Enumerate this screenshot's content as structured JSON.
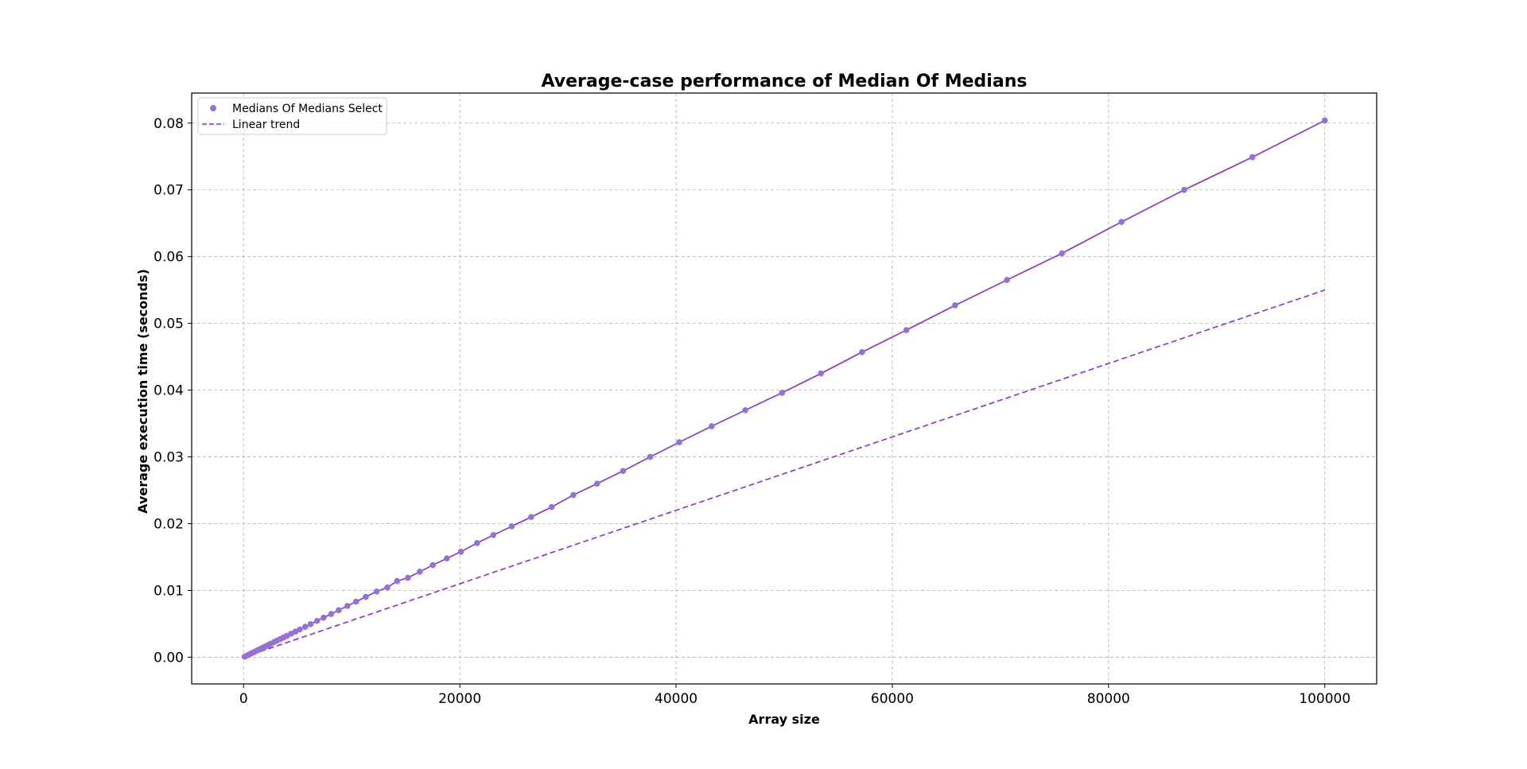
{
  "chart_data": {
    "type": "line",
    "title": "Average-case performance of Median Of Medians",
    "xlabel": "Array size",
    "ylabel": "Average execution time (seconds)",
    "xlim": [
      -4800,
      104800
    ],
    "ylim": [
      -0.004,
      0.0845
    ],
    "x_ticks": [
      0,
      20000,
      40000,
      60000,
      80000,
      100000
    ],
    "x_tick_labels": [
      "0",
      "20000",
      "40000",
      "60000",
      "80000",
      "100000"
    ],
    "y_ticks": [
      0.0,
      0.01,
      0.02,
      0.03,
      0.04,
      0.05,
      0.06,
      0.07,
      0.08
    ],
    "y_tick_labels": [
      "0.00",
      "0.01",
      "0.02",
      "0.03",
      "0.04",
      "0.05",
      "0.06",
      "0.07",
      "0.08"
    ],
    "grid": true,
    "legend_position": "top-left",
    "series": [
      {
        "name": "Medians Of Medians Select",
        "style": "points-with-line",
        "color": "#9370DB",
        "line_color": "#8A2BE2",
        "x": [
          100,
          300,
          500,
          700,
          900,
          1100,
          1300,
          1500,
          1700,
          1900,
          2100,
          2300,
          2500,
          2800,
          3100,
          3400,
          3700,
          4000,
          4400,
          4800,
          5200,
          5700,
          6200,
          6800,
          7400,
          8100,
          8800,
          9600,
          10400,
          11300,
          12300,
          13300,
          14200,
          15200,
          16300,
          17500,
          18800,
          20100,
          21600,
          23100,
          24800,
          26600,
          28500,
          30500,
          32700,
          35100,
          37600,
          40300,
          43300,
          46400,
          49800,
          53400,
          57200,
          61300,
          65800,
          70600,
          75700,
          81200,
          87000,
          93300,
          100000
        ],
        "y": [
          8e-05,
          0.00024,
          0.0004,
          0.00056,
          0.00072,
          0.00088,
          0.00104,
          0.0012,
          0.00136,
          0.00152,
          0.00168,
          0.00184,
          0.002,
          0.00224,
          0.00248,
          0.00272,
          0.00296,
          0.0032,
          0.00352,
          0.00384,
          0.00416,
          0.00456,
          0.00496,
          0.00544,
          0.00592,
          0.00648,
          0.00704,
          0.00768,
          0.00832,
          0.00904,
          0.00984,
          0.01045,
          0.0114,
          0.0119,
          0.0128,
          0.0138,
          0.0148,
          0.0158,
          0.0171,
          0.0183,
          0.0196,
          0.021,
          0.0225,
          0.0243,
          0.026,
          0.0279,
          0.03,
          0.0322,
          0.0346,
          0.037,
          0.0396,
          0.0425,
          0.0457,
          0.049,
          0.0527,
          0.0565,
          0.0605,
          0.0652,
          0.07,
          0.0749,
          0.0804
        ]
      },
      {
        "name": "Linear trend",
        "style": "dashed-line",
        "color": "#8A2BE2",
        "x": [
          0,
          100000
        ],
        "y": [
          0.0,
          0.055
        ]
      }
    ]
  }
}
